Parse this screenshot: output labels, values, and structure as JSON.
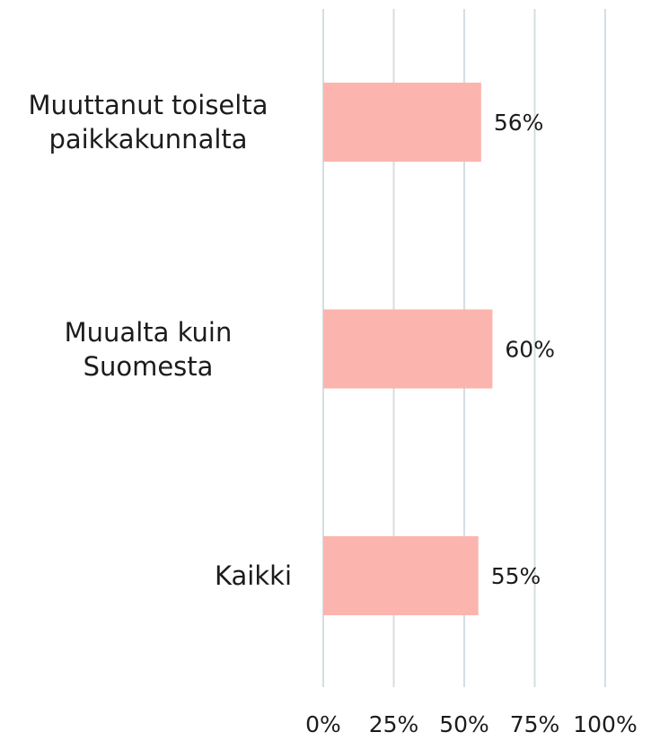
{
  "chart_data": {
    "type": "bar",
    "orientation": "horizontal",
    "categories": [
      "Muuttanut toiselta paikkakunnalta",
      "Muualta kuin Suomesta",
      "Kaikki"
    ],
    "values": [
      56,
      60,
      55
    ],
    "value_labels": [
      "56%",
      "60%",
      "55%"
    ],
    "color": "#fbb5ae",
    "xlim": [
      0,
      100
    ],
    "xticks": [
      {
        "value": 0,
        "label": "0%"
      },
      {
        "value": 25,
        "label": "25%"
      },
      {
        "value": 50,
        "label": "50%"
      },
      {
        "value": 75,
        "label": "75%"
      },
      {
        "value": 100,
        "label": "100%"
      }
    ],
    "grid": true
  }
}
